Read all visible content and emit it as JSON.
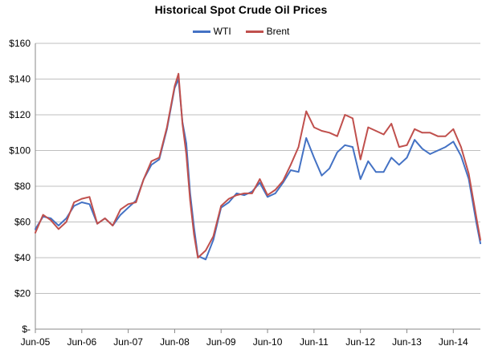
{
  "chart_data": {
    "type": "line",
    "title": "Historical Spot Crude Oil Prices",
    "xlabel": "",
    "ylabel": "",
    "x_ticks": [
      "Jun-05",
      "Jun-06",
      "Jun-07",
      "Jun-08",
      "Jun-09",
      "Jun-10",
      "Jun-11",
      "Jun-12",
      "Jun-13",
      "Jun-14"
    ],
    "y_ticks": [
      "$-",
      "$20",
      "$40",
      "$60",
      "$80",
      "$100",
      "$120",
      "$140",
      "$160"
    ],
    "ylim": [
      0,
      160
    ],
    "xlim": [
      "2005-06",
      "2015-01"
    ],
    "grid": "horizontal",
    "legend_position": "top",
    "x": [
      "2005-06",
      "2005-08",
      "2005-10",
      "2005-12",
      "2006-02",
      "2006-04",
      "2006-06",
      "2006-08",
      "2006-10",
      "2006-12",
      "2007-02",
      "2007-04",
      "2007-06",
      "2007-08",
      "2007-10",
      "2007-12",
      "2008-02",
      "2008-04",
      "2008-06",
      "2008-07",
      "2008-08",
      "2008-09",
      "2008-10",
      "2008-11",
      "2008-12",
      "2009-02",
      "2009-04",
      "2009-06",
      "2009-08",
      "2009-10",
      "2009-12",
      "2010-02",
      "2010-04",
      "2010-06",
      "2010-08",
      "2010-10",
      "2010-12",
      "2011-02",
      "2011-04",
      "2011-06",
      "2011-08",
      "2011-10",
      "2011-12",
      "2012-02",
      "2012-04",
      "2012-06",
      "2012-08",
      "2012-10",
      "2012-12",
      "2013-02",
      "2013-04",
      "2013-06",
      "2013-08",
      "2013-10",
      "2013-12",
      "2014-02",
      "2014-04",
      "2014-06",
      "2014-08",
      "2014-10",
      "2014-12",
      "2015-01"
    ],
    "series": [
      {
        "name": "WTI",
        "color": "#4472C4",
        "values": [
          56,
          63,
          62,
          58,
          62,
          69,
          71,
          70,
          59,
          62,
          58,
          64,
          68,
          72,
          84,
          92,
          95,
          112,
          135,
          140,
          116,
          104,
          76,
          57,
          41,
          39,
          50,
          68,
          71,
          76,
          75,
          77,
          82,
          74,
          76,
          82,
          89,
          88,
          107,
          96,
          86,
          90,
          99,
          103,
          102,
          84,
          94,
          88,
          88,
          96,
          92,
          96,
          106,
          101,
          98,
          100,
          102,
          105,
          97,
          84,
          59,
          48
        ]
      },
      {
        "name": "Brent",
        "color": "#C0504D",
        "values": [
          54,
          64,
          61,
          56,
          60,
          71,
          73,
          74,
          59,
          62,
          58,
          67,
          70,
          71,
          84,
          94,
          96,
          113,
          136,
          143,
          115,
          98,
          72,
          53,
          40,
          44,
          52,
          69,
          73,
          75,
          76,
          76,
          84,
          75,
          78,
          83,
          92,
          102,
          122,
          113,
          111,
          110,
          108,
          120,
          118,
          95,
          113,
          111,
          109,
          115,
          102,
          103,
          112,
          110,
          110,
          108,
          108,
          112,
          102,
          87,
          62,
          50
        ]
      }
    ]
  }
}
